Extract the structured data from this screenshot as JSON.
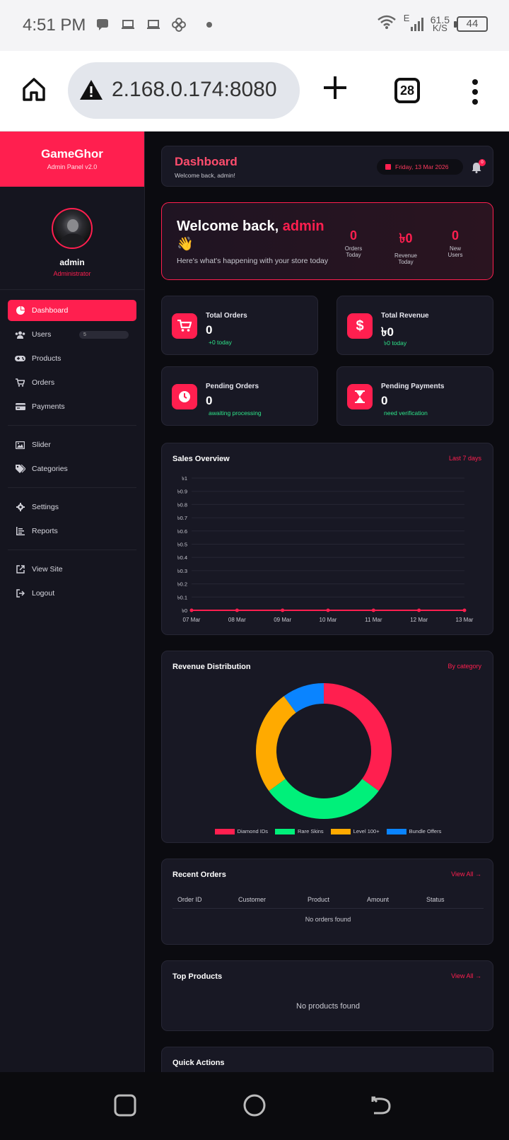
{
  "status_bar": {
    "time": "4:51 PM",
    "net_speed": "61.5",
    "net_unit": "K/S",
    "network": "E",
    "battery": "44"
  },
  "browser": {
    "url": "2.168.0.174:8080",
    "tab_count": "28"
  },
  "sidebar": {
    "brand": "GameGhor",
    "brand_sub": "Admin Panel v2.0",
    "user_name": "admin",
    "user_role": "Administrator",
    "items": [
      {
        "label": "Dashboard",
        "icon": "pie-chart-icon"
      },
      {
        "label": "Users",
        "icon": "users-icon",
        "badge": "5"
      },
      {
        "label": "Products",
        "icon": "gamepad-icon"
      },
      {
        "label": "Orders",
        "icon": "cart-icon"
      },
      {
        "label": "Payments",
        "icon": "credit-card-icon"
      },
      {
        "label": "Slider",
        "icon": "images-icon"
      },
      {
        "label": "Categories",
        "icon": "tags-icon"
      },
      {
        "label": "Settings",
        "icon": "gear-icon"
      },
      {
        "label": "Reports",
        "icon": "report-icon"
      },
      {
        "label": "View Site",
        "icon": "external-link-icon"
      },
      {
        "label": "Logout",
        "icon": "logout-icon"
      }
    ]
  },
  "topbar": {
    "title": "Dashboard",
    "subtitle": "Welcome back, admin!",
    "date": "Friday, 13 Mar 2026",
    "notif_count": "0"
  },
  "welcome": {
    "greeting": "Welcome back,",
    "name": "admin",
    "emoji": "👋",
    "sub": "Here's what's happening with your store today",
    "stats": [
      {
        "value": "0",
        "label1": "Orders",
        "label2": "Today"
      },
      {
        "value": "৳0",
        "label1": "Revenue",
        "label2": "Today"
      },
      {
        "value": "0",
        "label1": "New",
        "label2": "Users"
      }
    ]
  },
  "stats": [
    {
      "title": "Total Orders",
      "value": "0",
      "note": "+0 today",
      "icon": "cart-icon"
    },
    {
      "title": "Total Revenue",
      "value": "৳0",
      "note": "৳0 today",
      "icon": "dollar-icon"
    },
    {
      "title": "Pending Orders",
      "value": "0",
      "note": "awaiting processing",
      "icon": "clock-icon"
    },
    {
      "title": "Pending Payments",
      "value": "0",
      "note": "need verification",
      "icon": "hourglass-icon"
    }
  ],
  "sales": {
    "title": "Sales Overview",
    "range": "Last 7 days"
  },
  "revenue_dist": {
    "title": "Revenue Distribution",
    "link": "By category"
  },
  "recent_orders": {
    "title": "Recent Orders",
    "link": "View All →",
    "columns": [
      "Order ID",
      "Customer",
      "Product",
      "Amount",
      "Status"
    ],
    "empty": "No orders found"
  },
  "top_products": {
    "title": "Top Products",
    "link": "View All →",
    "empty": "No products found"
  },
  "quick_actions": {
    "title": "Quick Actions"
  },
  "chart_data": [
    {
      "type": "line",
      "title": "Sales Overview",
      "x": [
        "07 Mar",
        "08 Mar",
        "09 Mar",
        "10 Mar",
        "11 Mar",
        "12 Mar",
        "13 Mar"
      ],
      "series": [
        {
          "values": [
            0,
            0,
            0,
            0,
            0,
            0,
            0
          ]
        }
      ],
      "yticks": [
        "৳0",
        "৳0.1",
        "৳0.2",
        "৳0.3",
        "৳0.4",
        "৳0.5",
        "৳0.6",
        "৳0.7",
        "৳0.8",
        "৳0.9",
        "৳1"
      ],
      "ylim": [
        0,
        1
      ],
      "grid": true,
      "color": "#ff1f4f"
    },
    {
      "type": "pie",
      "title": "Revenue Distribution",
      "categories": [
        "Diamond IDs",
        "Rare Skins",
        "Level 100+",
        "Bundle Offers"
      ],
      "values": [
        35,
        30,
        25,
        10
      ],
      "colors": [
        "#ff1f4f",
        "#00f07a",
        "#ffaa00",
        "#0a84ff"
      ],
      "donut": true,
      "legend": "bottom"
    }
  ]
}
